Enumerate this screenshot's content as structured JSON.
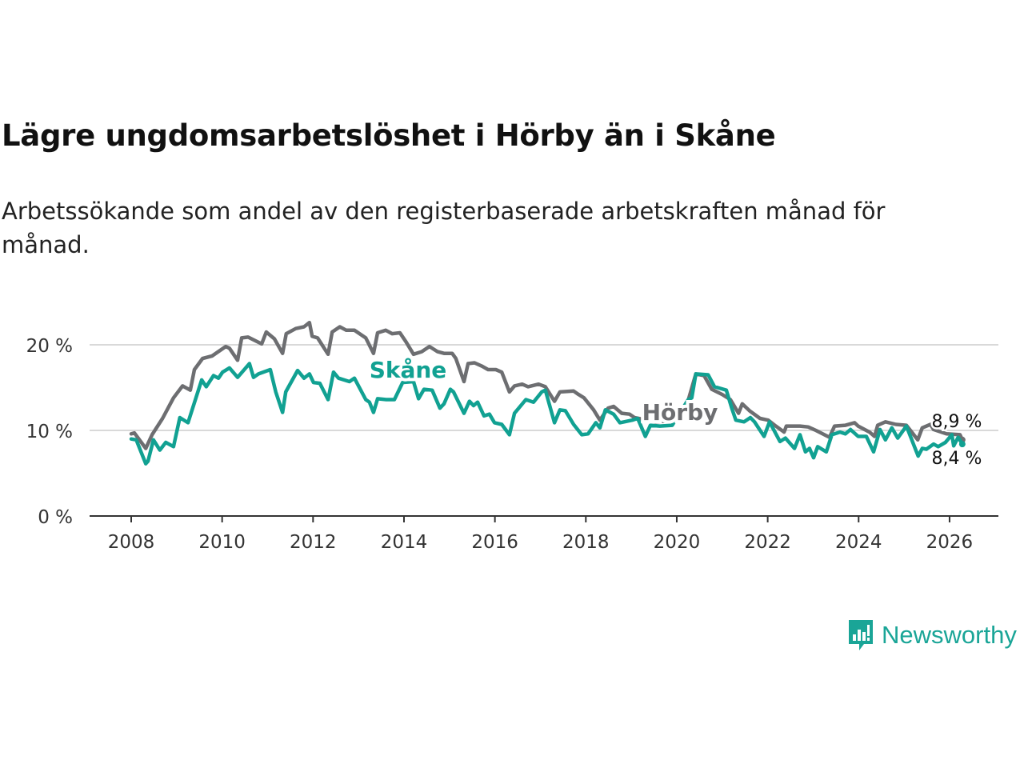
{
  "chart_data": {
    "type": "line",
    "title": "Lägre ungdomsarbetslöshet i Hörby än i Skåne",
    "subtitle": "Arbetssökande som andel av den registerbaserade arbetskraften månad för månad.",
    "xlabel": "",
    "ylabel": "",
    "xlim": [
      2008,
      2026.3
    ],
    "ylim": [
      0,
      20
    ],
    "x_ticks": [
      2008,
      2010,
      2012,
      2014,
      2016,
      2018,
      2020,
      2022,
      2024,
      2026
    ],
    "x_tick_labels": [
      "2008",
      "2010",
      "2012",
      "2014",
      "2016",
      "2018",
      "2020",
      "2022",
      "2024",
      "2026"
    ],
    "y_ticks": [
      0,
      10,
      20
    ],
    "y_tick_labels": [
      "0 %",
      "10 %",
      "20 %"
    ],
    "grid": true,
    "series": [
      {
        "name": "Skåne",
        "color": "#6d6e71",
        "end_label": "8,9 %",
        "points": [
          [
            2008.0,
            9.6
          ],
          [
            2008.07,
            9.7
          ],
          [
            2008.32,
            7.9
          ],
          [
            2008.46,
            9.5
          ],
          [
            2008.69,
            11.4
          ],
          [
            2008.93,
            13.8
          ],
          [
            2009.13,
            15.2
          ],
          [
            2009.3,
            14.7
          ],
          [
            2009.39,
            17.1
          ],
          [
            2009.57,
            18.4
          ],
          [
            2009.78,
            18.7
          ],
          [
            2010.08,
            19.8
          ],
          [
            2010.16,
            19.6
          ],
          [
            2010.34,
            18.2
          ],
          [
            2010.43,
            20.8
          ],
          [
            2010.57,
            20.9
          ],
          [
            2010.87,
            20.1
          ],
          [
            2010.97,
            21.5
          ],
          [
            2011.15,
            20.7
          ],
          [
            2011.33,
            19.0
          ],
          [
            2011.41,
            21.3
          ],
          [
            2011.62,
            21.9
          ],
          [
            2011.8,
            22.1
          ],
          [
            2011.92,
            22.6
          ],
          [
            2011.98,
            21.0
          ],
          [
            2012.1,
            20.8
          ],
          [
            2012.33,
            18.9
          ],
          [
            2012.42,
            21.5
          ],
          [
            2012.59,
            22.1
          ],
          [
            2012.73,
            21.7
          ],
          [
            2012.91,
            21.7
          ],
          [
            2013.16,
            20.8
          ],
          [
            2013.33,
            19.0
          ],
          [
            2013.42,
            21.4
          ],
          [
            2013.6,
            21.7
          ],
          [
            2013.74,
            21.3
          ],
          [
            2013.91,
            21.4
          ],
          [
            2014.05,
            20.3
          ],
          [
            2014.21,
            18.9
          ],
          [
            2014.39,
            19.2
          ],
          [
            2014.56,
            19.8
          ],
          [
            2014.74,
            19.2
          ],
          [
            2014.88,
            19.0
          ],
          [
            2015.06,
            19.0
          ],
          [
            2015.14,
            18.4
          ],
          [
            2015.32,
            15.7
          ],
          [
            2015.41,
            17.8
          ],
          [
            2015.55,
            17.9
          ],
          [
            2015.72,
            17.5
          ],
          [
            2015.85,
            17.1
          ],
          [
            2016.02,
            17.1
          ],
          [
            2016.15,
            16.8
          ],
          [
            2016.32,
            14.5
          ],
          [
            2016.43,
            15.2
          ],
          [
            2016.6,
            15.4
          ],
          [
            2016.73,
            15.1
          ],
          [
            2016.96,
            15.4
          ],
          [
            2017.11,
            15.1
          ],
          [
            2017.31,
            13.4
          ],
          [
            2017.43,
            14.5
          ],
          [
            2017.73,
            14.6
          ],
          [
            2017.84,
            14.2
          ],
          [
            2017.96,
            13.8
          ],
          [
            2018.17,
            12.4
          ],
          [
            2018.31,
            11.2
          ],
          [
            2018.49,
            12.6
          ],
          [
            2018.61,
            12.8
          ],
          [
            2018.79,
            12.0
          ],
          [
            2018.96,
            11.9
          ],
          [
            2019.07,
            11.5
          ],
          [
            2019.54,
            11.0
          ],
          [
            2020.07,
            11.2
          ],
          [
            2020.25,
            13.5
          ],
          [
            2020.42,
            16.6
          ],
          [
            2020.6,
            16.4
          ],
          [
            2020.77,
            14.8
          ],
          [
            2021.0,
            14.2
          ],
          [
            2021.18,
            13.6
          ],
          [
            2021.36,
            12.0
          ],
          [
            2021.44,
            13.1
          ],
          [
            2021.6,
            12.3
          ],
          [
            2021.83,
            11.4
          ],
          [
            2022.01,
            11.2
          ],
          [
            2022.18,
            10.5
          ],
          [
            2022.36,
            9.8
          ],
          [
            2022.41,
            10.5
          ],
          [
            2022.71,
            10.5
          ],
          [
            2022.89,
            10.4
          ],
          [
            2023.06,
            10.0
          ],
          [
            2023.36,
            9.2
          ],
          [
            2023.47,
            10.5
          ],
          [
            2023.71,
            10.6
          ],
          [
            2023.91,
            10.9
          ],
          [
            2023.99,
            10.5
          ],
          [
            2024.24,
            9.8
          ],
          [
            2024.35,
            9.3
          ],
          [
            2024.42,
            10.6
          ],
          [
            2024.59,
            11.0
          ],
          [
            2024.82,
            10.7
          ],
          [
            2025.05,
            10.6
          ],
          [
            2025.3,
            8.9
          ],
          [
            2025.4,
            10.3
          ],
          [
            2025.58,
            10.7
          ],
          [
            2025.65,
            10.1
          ],
          [
            2025.93,
            9.6
          ],
          [
            2026.23,
            9.5
          ],
          [
            2026.28,
            8.9
          ]
        ]
      },
      {
        "name": "Hörby",
        "color": "#11a192",
        "end_label": "8,4 %",
        "points": [
          [
            2008.0,
            9.0
          ],
          [
            2008.11,
            8.9
          ],
          [
            2008.32,
            6.1
          ],
          [
            2008.37,
            6.4
          ],
          [
            2008.49,
            8.9
          ],
          [
            2008.63,
            7.7
          ],
          [
            2008.76,
            8.6
          ],
          [
            2008.93,
            8.1
          ],
          [
            2009.07,
            11.5
          ],
          [
            2009.25,
            10.9
          ],
          [
            2009.55,
            15.9
          ],
          [
            2009.65,
            15.1
          ],
          [
            2009.81,
            16.4
          ],
          [
            2009.92,
            16.1
          ],
          [
            2010.01,
            16.8
          ],
          [
            2010.16,
            17.3
          ],
          [
            2010.34,
            16.2
          ],
          [
            2010.6,
            17.8
          ],
          [
            2010.69,
            16.2
          ],
          [
            2010.8,
            16.6
          ],
          [
            2011.06,
            17.1
          ],
          [
            2011.18,
            14.5
          ],
          [
            2011.33,
            12.1
          ],
          [
            2011.4,
            14.5
          ],
          [
            2011.66,
            17.0
          ],
          [
            2011.8,
            16.1
          ],
          [
            2011.92,
            16.6
          ],
          [
            2012.01,
            15.6
          ],
          [
            2012.15,
            15.5
          ],
          [
            2012.33,
            13.6
          ],
          [
            2012.45,
            16.8
          ],
          [
            2012.56,
            16.1
          ],
          [
            2012.8,
            15.7
          ],
          [
            2012.91,
            16.1
          ],
          [
            2013.16,
            13.6
          ],
          [
            2013.24,
            13.3
          ],
          [
            2013.33,
            12.1
          ],
          [
            2013.42,
            13.7
          ],
          [
            2013.61,
            13.6
          ],
          [
            2013.79,
            13.6
          ],
          [
            2013.97,
            15.6
          ],
          [
            2014.21,
            15.7
          ],
          [
            2014.32,
            13.7
          ],
          [
            2014.44,
            14.8
          ],
          [
            2014.62,
            14.7
          ],
          [
            2014.79,
            12.6
          ],
          [
            2014.88,
            13.1
          ],
          [
            2015.02,
            14.8
          ],
          [
            2015.09,
            14.5
          ],
          [
            2015.32,
            12.0
          ],
          [
            2015.44,
            13.4
          ],
          [
            2015.53,
            12.9
          ],
          [
            2015.62,
            13.3
          ],
          [
            2015.76,
            11.7
          ],
          [
            2015.88,
            11.9
          ],
          [
            2015.99,
            10.9
          ],
          [
            2016.15,
            10.7
          ],
          [
            2016.32,
            9.5
          ],
          [
            2016.43,
            12.0
          ],
          [
            2016.68,
            13.6
          ],
          [
            2016.85,
            13.3
          ],
          [
            2017.03,
            14.5
          ],
          [
            2017.11,
            14.7
          ],
          [
            2017.31,
            10.9
          ],
          [
            2017.43,
            12.4
          ],
          [
            2017.55,
            12.3
          ],
          [
            2017.73,
            10.7
          ],
          [
            2017.91,
            9.5
          ],
          [
            2018.05,
            9.6
          ],
          [
            2018.22,
            10.9
          ],
          [
            2018.31,
            10.3
          ],
          [
            2018.43,
            12.4
          ],
          [
            2018.61,
            11.9
          ],
          [
            2018.75,
            10.9
          ],
          [
            2019.02,
            11.2
          ],
          [
            2019.14,
            11.4
          ],
          [
            2019.31,
            9.3
          ],
          [
            2019.42,
            10.6
          ],
          [
            2019.63,
            10.5
          ],
          [
            2019.9,
            10.6
          ],
          [
            2020.25,
            13.6
          ],
          [
            2020.33,
            13.8
          ],
          [
            2020.42,
            16.6
          ],
          [
            2020.69,
            16.5
          ],
          [
            2020.83,
            15.1
          ],
          [
            2021.09,
            14.7
          ],
          [
            2021.21,
            12.6
          ],
          [
            2021.3,
            11.2
          ],
          [
            2021.48,
            11.0
          ],
          [
            2021.62,
            11.5
          ],
          [
            2021.71,
            11.0
          ],
          [
            2021.92,
            9.3
          ],
          [
            2022.04,
            11.0
          ],
          [
            2022.27,
            8.7
          ],
          [
            2022.39,
            9.1
          ],
          [
            2022.59,
            7.9
          ],
          [
            2022.71,
            9.5
          ],
          [
            2022.83,
            7.5
          ],
          [
            2022.92,
            7.9
          ],
          [
            2023.01,
            6.8
          ],
          [
            2023.1,
            8.1
          ],
          [
            2023.29,
            7.5
          ],
          [
            2023.41,
            9.5
          ],
          [
            2023.59,
            9.8
          ],
          [
            2023.71,
            9.6
          ],
          [
            2023.82,
            10.1
          ],
          [
            2023.99,
            9.3
          ],
          [
            2024.17,
            9.3
          ],
          [
            2024.33,
            7.5
          ],
          [
            2024.47,
            10.1
          ],
          [
            2024.59,
            8.9
          ],
          [
            2024.73,
            10.3
          ],
          [
            2024.86,
            9.1
          ],
          [
            2025.05,
            10.5
          ],
          [
            2025.31,
            7.0
          ],
          [
            2025.4,
            7.9
          ],
          [
            2025.49,
            7.8
          ],
          [
            2025.65,
            8.4
          ],
          [
            2025.75,
            8.1
          ],
          [
            2025.91,
            8.6
          ],
          [
            2026.05,
            9.5
          ],
          [
            2026.09,
            8.2
          ],
          [
            2026.19,
            9.2
          ],
          [
            2026.28,
            8.4
          ]
        ]
      }
    ],
    "annotations": [
      "Hörby",
      "Skåne"
    ],
    "legend": "inline-labels"
  },
  "brand": {
    "name": "Newsworthy",
    "color": "#1aa597"
  }
}
